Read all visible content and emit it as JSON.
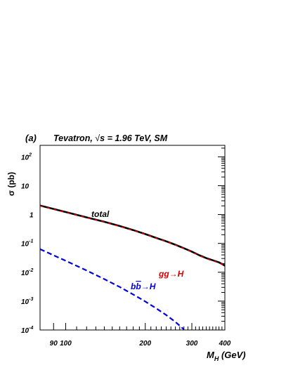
{
  "chart_data": {
    "type": "line",
    "panel_label": "(a)",
    "title_parts": {
      "pre": "Tevatron, ",
      "sqrt": "√",
      "post": "s = 1.96 TeV, SM"
    },
    "ylabel": "σ (pb)",
    "xlabel": {
      "main": "M",
      "sub": "H",
      "unit": " (GeV)"
    },
    "x_scale": "log",
    "y_scale": "log",
    "xlim": [
      80,
      400
    ],
    "ylim": [
      0.0001,
      250
    ],
    "x_ticks": [
      {
        "value": 90,
        "label": "90"
      },
      {
        "value": 100,
        "label": "100"
      },
      {
        "value": 200,
        "label": "200"
      },
      {
        "value": 300,
        "label": "300"
      },
      {
        "value": 400,
        "label": "400"
      }
    ],
    "y_ticks": [
      {
        "value": 0.0001,
        "base": "10",
        "exp": "-4"
      },
      {
        "value": 0.001,
        "base": "10",
        "exp": "-3"
      },
      {
        "value": 0.01,
        "base": "10",
        "exp": "-2"
      },
      {
        "value": 0.1,
        "base": "10",
        "exp": "-1"
      },
      {
        "value": 1,
        "base": "1",
        "exp": ""
      },
      {
        "value": 10,
        "base": "10",
        "exp": ""
      },
      {
        "value": 100,
        "base": "10",
        "exp": "2"
      }
    ],
    "series": [
      {
        "name": "total",
        "color": "#000000",
        "style": "solid",
        "x": [
          80,
          100,
          120,
          140,
          160,
          180,
          200,
          220,
          240,
          260,
          280,
          300,
          320,
          340,
          360,
          380,
          400
        ],
        "y": [
          2.05,
          1.22,
          0.8,
          0.56,
          0.4,
          0.29,
          0.21,
          0.155,
          0.118,
          0.09,
          0.068,
          0.052,
          0.039,
          0.031,
          0.026,
          0.022,
          0.017
        ]
      },
      {
        "name": "gg→H",
        "color": "#d40000",
        "style": "dashed",
        "x": [
          80,
          100,
          120,
          140,
          160,
          180,
          200,
          220,
          240,
          260,
          280,
          300,
          320,
          340,
          360,
          380,
          400
        ],
        "y": [
          2.0,
          1.19,
          0.78,
          0.55,
          0.39,
          0.285,
          0.207,
          0.153,
          0.116,
          0.089,
          0.067,
          0.051,
          0.038,
          0.03,
          0.025,
          0.0215,
          0.0167
        ]
      },
      {
        "name": "bb̄→H",
        "color": "#0000e0",
        "style": "dashed",
        "x": [
          80,
          100,
          120,
          140,
          160,
          180,
          200,
          220,
          240,
          260,
          280
        ],
        "y": [
          0.063,
          0.025,
          0.0115,
          0.0058,
          0.0031,
          0.0017,
          0.00097,
          0.00056,
          0.00033,
          0.00019,
          0.000105
        ]
      }
    ],
    "labels": {
      "total": "total",
      "gg": "gg→H",
      "bb": {
        "b1": "b",
        "b2": "b",
        "arrow": "→H"
      }
    },
    "grid": false
  }
}
